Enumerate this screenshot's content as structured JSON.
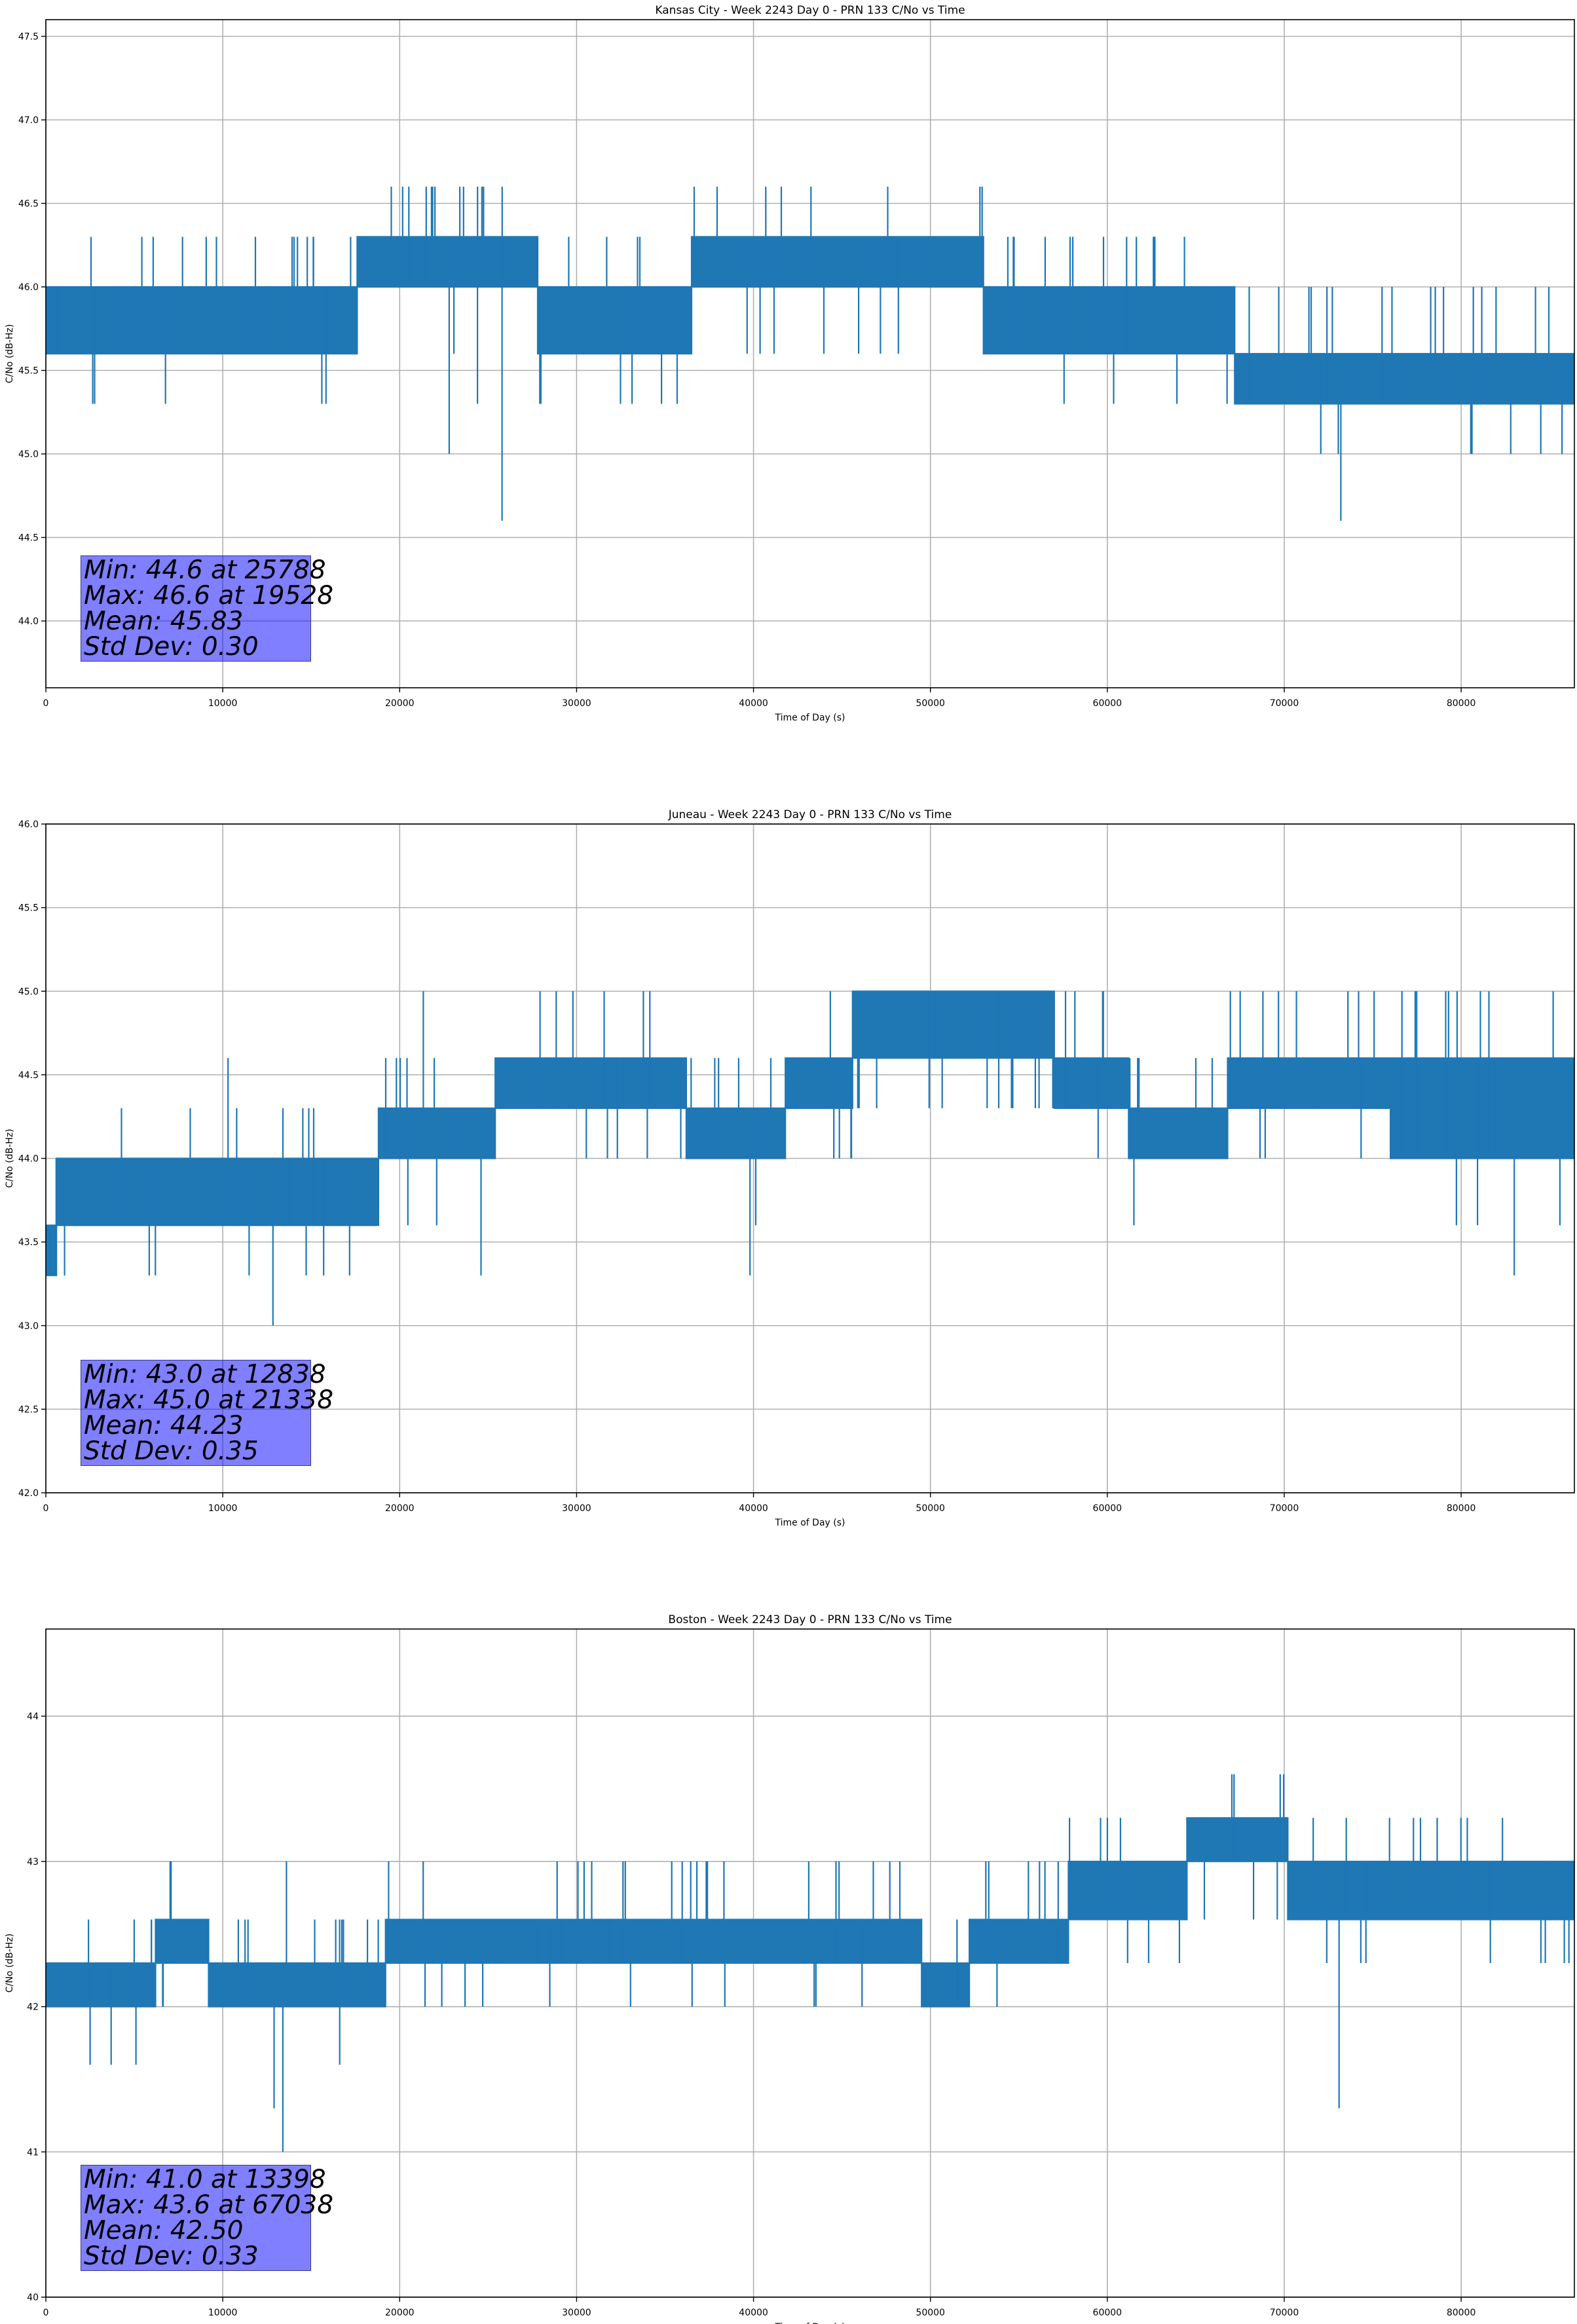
{
  "series_color": "#1f77b4",
  "chart_data": [
    {
      "type": "line",
      "title": "Kansas City - Week 2243 Day 0 - PRN 133 C/No vs Time",
      "xlabel": "Time of Day (s)",
      "ylabel": "C/No (dB-Hz)",
      "xlim": [
        0,
        86400
      ],
      "ylim": [
        43.6,
        47.6
      ],
      "xticks": [
        "0",
        "10000",
        "20000",
        "30000",
        "40000",
        "50000",
        "60000",
        "70000",
        "80000"
      ],
      "yticks": [
        "44.0",
        "44.5",
        "45.0",
        "45.5",
        "46.0",
        "46.5",
        "47.0",
        "47.5"
      ],
      "grid": true,
      "stats": [
        "Min: 44.6 at 25788",
        "Max: 46.6 at 19528",
        "Mean: 45.83",
        "Std Dev: 0.30"
      ],
      "series": [
        {
          "levels": [
            44.6,
            45.0,
            45.3,
            45.6,
            46.0,
            46.3,
            46.6
          ],
          "segments": [
            [
              0,
              3900,
              3,
              4
            ],
            [
              3900,
              17600,
              3,
              4
            ],
            [
              17600,
              27800,
              4,
              5
            ],
            [
              27800,
              36500,
              3,
              4
            ],
            [
              36500,
              53000,
              4,
              5
            ],
            [
              53000,
              67200,
              3,
              4
            ],
            [
              67200,
              86400,
              2,
              3
            ]
          ],
          "excursions": [
            [
              15600,
              45.3
            ],
            [
              19528,
              46.6
            ],
            [
              21800,
              46.6
            ],
            [
              22800,
              45.0
            ],
            [
              23400,
              46.6
            ],
            [
              24400,
              45.3
            ],
            [
              25788,
              44.6
            ],
            [
              52800,
              46.6
            ],
            [
              73200,
              44.6
            ],
            [
              82800,
              45.0
            ],
            [
              84500,
              45.0
            ],
            [
              85700,
              45.0
            ]
          ]
        }
      ]
    },
    {
      "type": "line",
      "title": "Juneau - Week 2243 Day 0 - PRN 133 C/No vs Time",
      "xlabel": "Time of Day (s)",
      "ylabel": "C/No (dB-Hz)",
      "xlim": [
        0,
        86400
      ],
      "ylim": [
        42.0,
        46.0
      ],
      "xticks": [
        "0",
        "10000",
        "20000",
        "30000",
        "40000",
        "50000",
        "60000",
        "70000",
        "80000"
      ],
      "yticks": [
        "42.0",
        "42.5",
        "43.0",
        "43.5",
        "44.0",
        "44.5",
        "45.0",
        "45.5",
        "46.0"
      ],
      "grid": true,
      "stats": [
        "Min: 43.0 at 12838",
        "Max: 45.0 at 21338",
        "Mean: 44.23",
        "Std Dev: 0.35"
      ],
      "series": [
        {
          "levels": [
            43.0,
            43.3,
            43.6,
            44.0,
            44.3,
            44.6,
            45.0
          ],
          "segments": [
            [
              0,
              600,
              1,
              2
            ],
            [
              600,
              18800,
              2,
              3
            ],
            [
              18800,
              25400,
              3,
              4
            ],
            [
              25400,
              36200,
              4,
              5
            ],
            [
              36200,
              41800,
              3,
              4
            ],
            [
              41800,
              45600,
              4,
              5
            ],
            [
              45600,
              57000,
              5,
              6
            ],
            [
              57000,
              61200,
              4,
              5
            ],
            [
              61200,
              66800,
              3,
              4
            ],
            [
              66800,
              76000,
              4,
              5
            ],
            [
              76000,
              86400,
              3,
              5
            ]
          ],
          "excursions": [
            [
              10300,
              44.6
            ],
            [
              12838,
              43.0
            ],
            [
              21338,
              45.0
            ],
            [
              24600,
              43.3
            ],
            [
              39800,
              43.3
            ],
            [
              73600,
              45.0
            ],
            [
              77400,
              45.0
            ],
            [
              83000,
              43.3
            ],
            [
              85200,
              45.0
            ]
          ]
        }
      ]
    },
    {
      "type": "line",
      "title": "Boston - Week 2243 Day 0 - PRN 133 C/No vs Time",
      "xlabel": "Time of Day (s)",
      "ylabel": "C/No (dB-Hz)",
      "xlim": [
        0,
        86400
      ],
      "ylim": [
        40,
        44.6
      ],
      "xticks": [
        "0",
        "10000",
        "20000",
        "30000",
        "40000",
        "50000",
        "60000",
        "70000",
        "80000"
      ],
      "yticks": [
        "40",
        "41",
        "42",
        "43",
        "44"
      ],
      "grid": true,
      "stats": [
        "Min: 41.0 at 13398",
        "Max: 43.6 at 67038",
        "Mean: 42.50",
        "Std Dev: 0.33"
      ],
      "series": [
        {
          "levels": [
            41.0,
            41.3,
            41.6,
            42.0,
            42.3,
            42.6,
            43.0,
            43.3,
            43.6
          ],
          "segments": [
            [
              0,
              6200,
              3,
              4
            ],
            [
              6200,
              9200,
              4,
              5
            ],
            [
              9200,
              19200,
              3,
              4
            ],
            [
              19200,
              49500,
              4,
              5
            ],
            [
              49500,
              52200,
              3,
              4
            ],
            [
              52200,
              57800,
              4,
              5
            ],
            [
              57800,
              64500,
              5,
              6
            ],
            [
              64500,
              70200,
              6,
              7
            ],
            [
              70200,
              86400,
              5,
              6
            ]
          ],
          "excursions": [
            [
              12900,
              41.3
            ],
            [
              13398,
              41.0
            ],
            [
              13600,
              43.0
            ],
            [
              67038,
              43.6
            ],
            [
              73100,
              41.3
            ]
          ]
        }
      ]
    }
  ]
}
